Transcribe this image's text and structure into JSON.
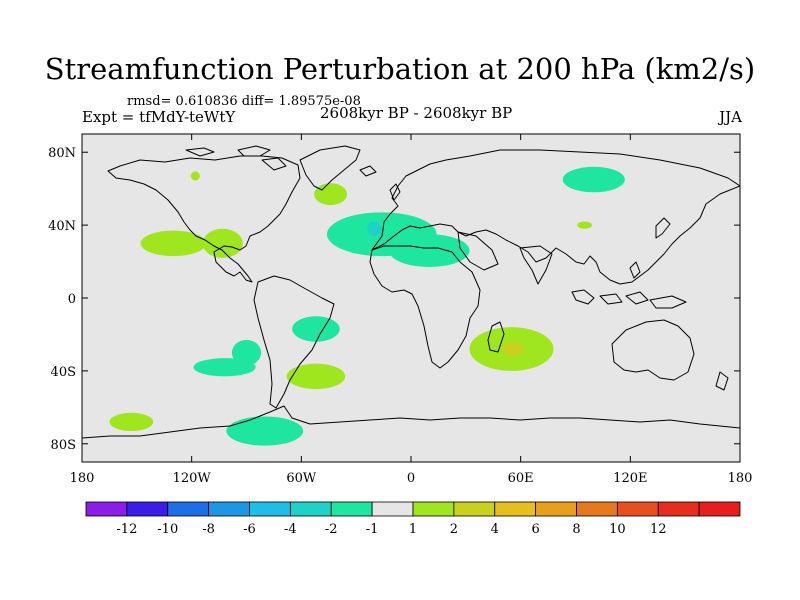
{
  "chart_data": {
    "type": "heatmap",
    "title": "Streamfunction Perturbation at 200 hPa (km2/s)",
    "stats_line": "rmsd= 0.610836 diff= 1.89575e-08",
    "left_label": "Expt = tfMdY-teWtY",
    "center_label": "2608kyr BP - 2608kyr BP",
    "right_label": "JJA",
    "x_ticks": [
      "180",
      "120W",
      "60W",
      "0",
      "60E",
      "120E",
      "180"
    ],
    "y_ticks": [
      "80N",
      "40N",
      "0",
      "40S",
      "80S"
    ],
    "xlim": [
      -180,
      180
    ],
    "ylim": [
      -90,
      90
    ],
    "colorbar": {
      "colors": [
        "#8a1ee6",
        "#3a1ee6",
        "#1e6ee6",
        "#1e96e6",
        "#1ebee6",
        "#1ed2c8",
        "#1ee6a0",
        "#e6e6e6",
        "#a0e61e",
        "#c8d21e",
        "#e6be1e",
        "#e6a01e",
        "#e6781e",
        "#e6501e",
        "#e62d1e",
        "#e61e1e"
      ],
      "labels": [
        "-12",
        "-10",
        "-8",
        "-6",
        "-4",
        "-2",
        "-1",
        "1",
        "2",
        "4",
        "6",
        "8",
        "10",
        "12"
      ]
    },
    "anomalies": [
      {
        "lon": -16,
        "lat": 35,
        "rlon": 30,
        "rlat": 12,
        "level": "-1",
        "color": "#1ee6a0"
      },
      {
        "lon": 10,
        "lat": 26,
        "rlon": 22,
        "rlat": 9,
        "level": "-1",
        "color": "#1ee6a0"
      },
      {
        "lon": -20,
        "lat": 38,
        "rlon": 4,
        "rlat": 4,
        "level": "-2",
        "color": "#1ed2c8"
      },
      {
        "lon": -44,
        "lat": 57,
        "rlon": 9,
        "rlat": 6,
        "level": "1",
        "color": "#a0e61e"
      },
      {
        "lon": -130,
        "lat": 30,
        "rlon": 18,
        "rlat": 7,
        "level": "1",
        "color": "#a0e61e"
      },
      {
        "lon": -103,
        "lat": 30,
        "rlon": 11,
        "rlat": 8,
        "level": "1",
        "color": "#a0e61e"
      },
      {
        "lon": -118,
        "lat": 67,
        "rlon": 2.5,
        "rlat": 2.5,
        "level": "1",
        "color": "#a0e61e"
      },
      {
        "lon": 100,
        "lat": 65,
        "rlon": 17,
        "rlat": 7,
        "level": "-1",
        "color": "#1ee6a0"
      },
      {
        "lon": 95,
        "lat": 40,
        "rlon": 4,
        "rlat": 2,
        "level": "1",
        "color": "#a0e61e"
      },
      {
        "lon": -52,
        "lat": -17,
        "rlon": 13,
        "rlat": 7,
        "level": "-1",
        "color": "#1ee6a0"
      },
      {
        "lon": -102,
        "lat": -38,
        "rlon": 17,
        "rlat": 5,
        "level": "-1",
        "color": "#1ee6a0"
      },
      {
        "lon": -90,
        "lat": -30,
        "rlon": 8,
        "rlat": 7,
        "level": "-1",
        "color": "#1ee6a0"
      },
      {
        "lon": -52,
        "lat": -43,
        "rlon": 16,
        "rlat": 7,
        "level": "1",
        "color": "#a0e61e"
      },
      {
        "lon": 55,
        "lat": -28,
        "rlon": 23,
        "rlat": 12,
        "level": "1",
        "color": "#a0e61e"
      },
      {
        "lon": 56,
        "lat": -28,
        "rlon": 6,
        "rlat": 4,
        "level": "4",
        "color": "#c8d21e"
      },
      {
        "lon": -80,
        "lat": -73,
        "rlon": 21,
        "rlat": 8,
        "level": "-1",
        "color": "#1ee6a0"
      },
      {
        "lon": -153,
        "lat": -68,
        "rlon": 12,
        "rlat": 5,
        "level": "1",
        "color": "#a0e61e"
      }
    ]
  }
}
